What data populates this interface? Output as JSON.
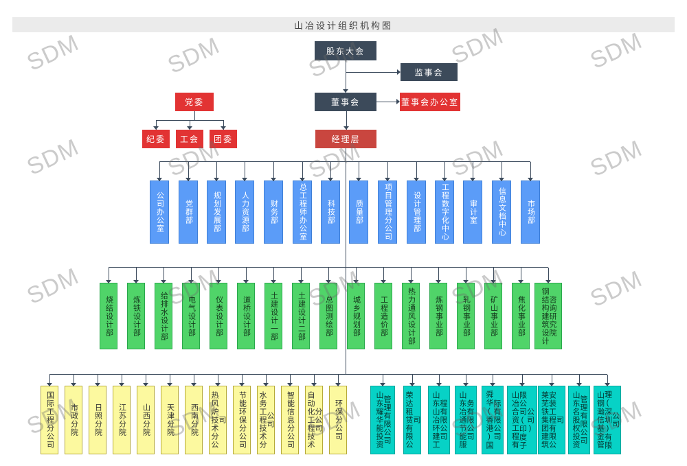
{
  "page": {
    "title": "山冶设计组织机构图",
    "watermark": "SDM"
  },
  "org": {
    "shareholders": "股东大会",
    "supervisory_board": "监事会",
    "board": "董事会",
    "board_office": "董事会办公室",
    "management": "经理层",
    "party_committee": "党委",
    "party_children": [
      "纪委",
      "工会",
      "团委"
    ],
    "departments": [
      "公司办公室",
      "党群部",
      "规划发展部",
      "人力资源部",
      "财务部",
      "总工程师办公室",
      "科技部",
      "质量部",
      "项目管理分公司",
      "设计管理部",
      "工程数字化中心",
      "审计室",
      "信息文档中心",
      "市场部"
    ],
    "design_departments": [
      "烧结设计部",
      "炼铁设计部",
      "给排水设计部",
      "电气设计部",
      "仪表设计部",
      "道桥设计部",
      "土建设计一部",
      "土建设计二部",
      "总图测绘部",
      "城乡规划部",
      "工程造价部",
      "热力通风设计部",
      "炼钢事业部",
      "轧钢事业部",
      "矿山事业部",
      "焦化事业部",
      "钢结构建筑设计咨询研究院"
    ],
    "branches": [
      "国际工程分公司",
      "市政分院",
      "日照分院",
      "江苏分院",
      "山西分院",
      "天津分院",
      "西南分院",
      "热风炉技术分公司",
      "节能环保分公司",
      "水务工程技术分公司",
      "智能信息分公司",
      "自动化工程技术分公司",
      "环保分公司"
    ],
    "subsidiaries": [
      "山东耀华能投资管理有限公司",
      "荣达租赁有限公司",
      "山东山冶环建工程有限公司",
      "山东冶通节能服务有限公司",
      "舜华(香港)国际有限公司",
      "山冶合资工程有限公司(印度子公司)",
      "莱芜铁集团建筑安装工程有限公司",
      "山东名股权投资管理有限公司",
      "山钢瀚信基金管理(深圳)有限公司"
    ]
  },
  "colors": {
    "dark": "#3c4a5a",
    "red": "#e23333",
    "management_red": "#c9463f",
    "blue": "#5b9cf8",
    "green": "#50d469",
    "yellow": "#fcf99f",
    "teal": "#07d2c6",
    "line": "#3b4a5c"
  }
}
